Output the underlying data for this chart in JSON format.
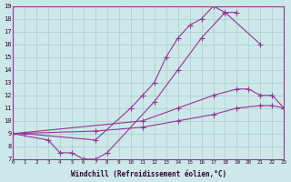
{
  "xlabel": "Windchill (Refroidissement éolien,°C)",
  "bg_color": "#cce8e8",
  "line_color": "#993399",
  "grid_color": "#aacccc",
  "xmin": 0,
  "xmax": 23,
  "ymin": 7,
  "ymax": 19,
  "series": [
    {
      "x": [
        0,
        1,
        7,
        10,
        11,
        12,
        13,
        14,
        15,
        16,
        17,
        18,
        21
      ],
      "y": [
        9,
        9,
        8.5,
        11,
        12,
        13,
        15,
        16.5,
        17.5,
        18,
        19,
        18.5,
        16
      ]
    },
    {
      "x": [
        0,
        3,
        4,
        5,
        6,
        7,
        8,
        12,
        14,
        16,
        18,
        19
      ],
      "y": [
        9,
        8.5,
        7.5,
        7.5,
        7,
        7,
        7.5,
        11.5,
        14,
        16.5,
        18.5,
        18.5
      ]
    },
    {
      "x": [
        0,
        11,
        14,
        17,
        19,
        20,
        21,
        22,
        23
      ],
      "y": [
        9,
        10,
        11,
        12,
        12.5,
        12.5,
        12,
        12,
        11
      ]
    },
    {
      "x": [
        0,
        7,
        11,
        14,
        17,
        19,
        21,
        22,
        23
      ],
      "y": [
        9,
        9.2,
        9.5,
        10,
        10.5,
        11,
        11.2,
        11.2,
        11
      ]
    }
  ]
}
